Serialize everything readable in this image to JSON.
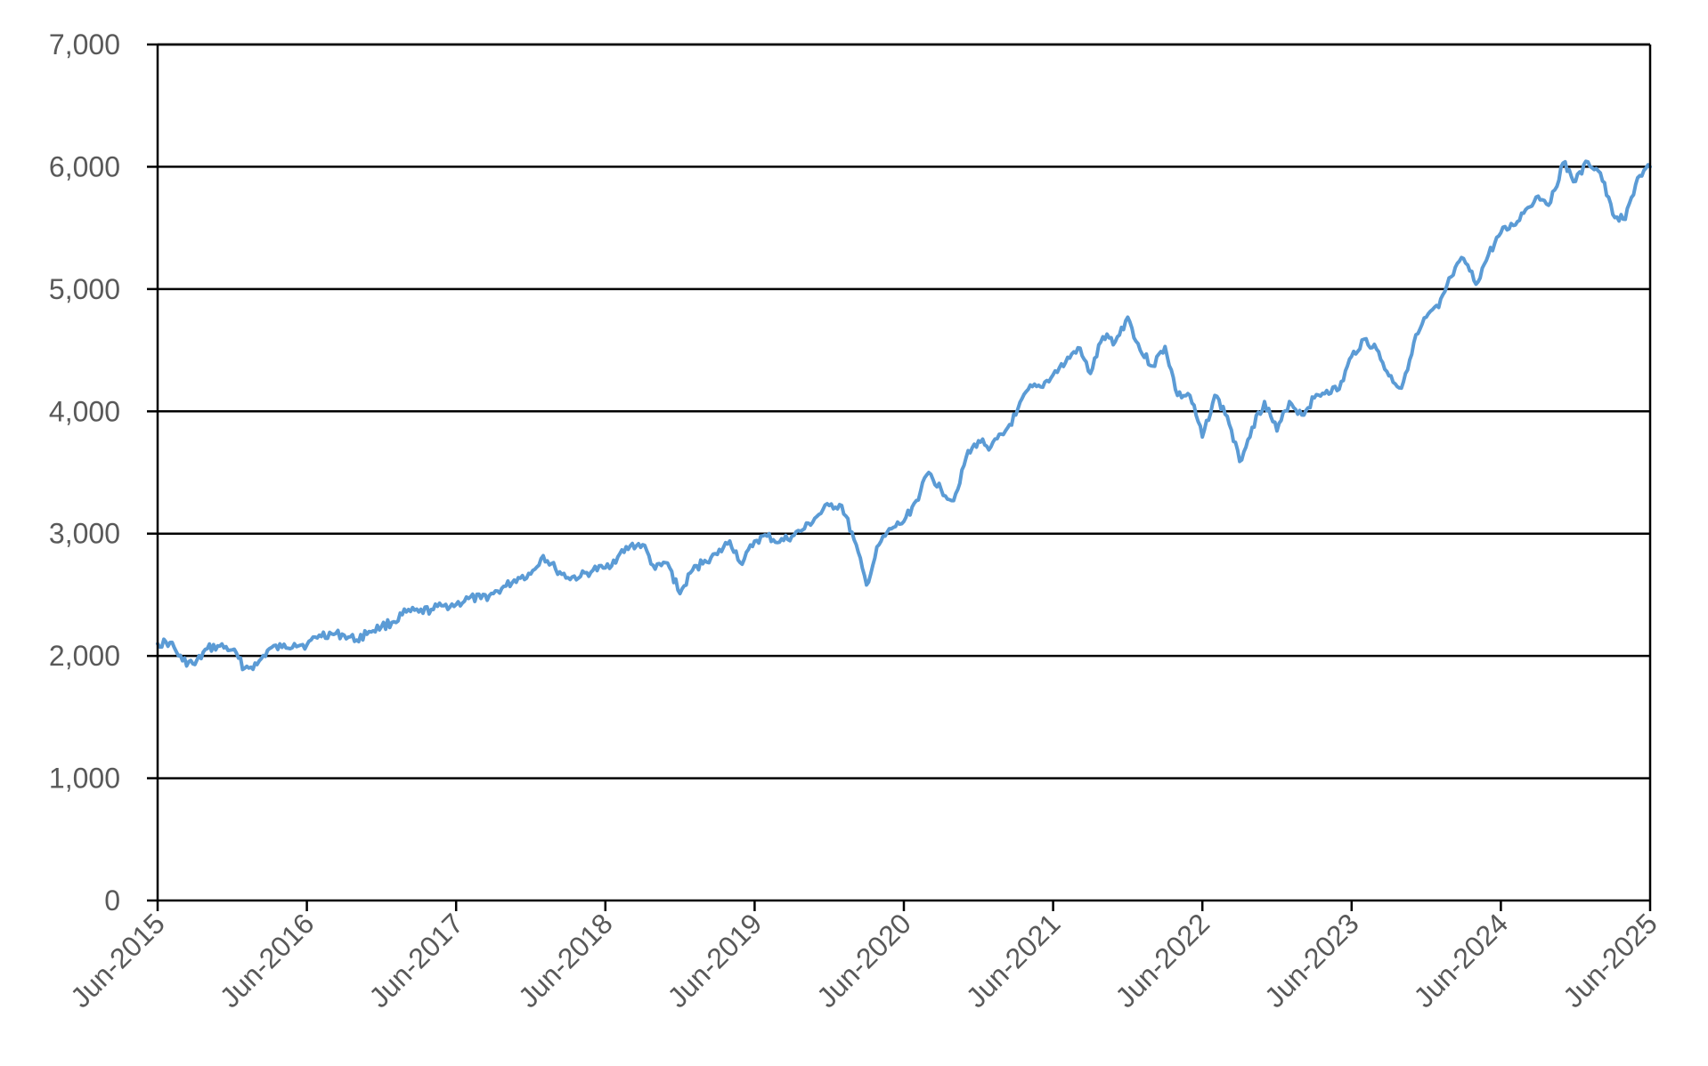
{
  "chart_data": {
    "type": "line",
    "title": "",
    "xlabel": "",
    "ylabel": "",
    "xlim": [
      "2015-06",
      "2025-06"
    ],
    "ylim": [
      0,
      7000
    ],
    "y_ticks": [
      0,
      1000,
      2000,
      3000,
      4000,
      5000,
      6000,
      7000
    ],
    "y_tick_labels": [
      "0",
      "1,000",
      "2,000",
      "3,000",
      "4,000",
      "5,000",
      "6,000",
      "7,000"
    ],
    "x_ticks": [
      "2015-06",
      "2016-06",
      "2017-06",
      "2018-06",
      "2019-06",
      "2020-06",
      "2021-06",
      "2022-06",
      "2023-06",
      "2024-06",
      "2025-06"
    ],
    "x_tick_labels": [
      "Jun-2015",
      "Jun-2016",
      "Jun-2017",
      "Jun-2018",
      "Jun-2019",
      "Jun-2020",
      "Jun-2021",
      "Jun-2022",
      "Jun-2023",
      "Jun-2024",
      "Jun-2025"
    ],
    "grid": "horizontal",
    "legend": "none",
    "colors": {
      "series": "#5B9BD5",
      "grid": "#000000",
      "axis": "#000000",
      "tick_text": "#595959"
    },
    "series": [
      {
        "x": [
          "2015-06",
          "2015-07",
          "2015-08",
          "2015-09",
          "2015-10",
          "2015-11",
          "2015-12",
          "2016-01",
          "2016-02",
          "2016-03",
          "2016-04",
          "2016-05",
          "2016-06",
          "2016-07",
          "2016-08",
          "2016-09",
          "2016-10",
          "2016-11",
          "2016-12",
          "2017-01",
          "2017-02",
          "2017-03",
          "2017-04",
          "2017-05",
          "2017-06",
          "2017-07",
          "2017-08",
          "2017-09",
          "2017-10",
          "2017-11",
          "2017-12",
          "2018-01",
          "2018-02",
          "2018-03",
          "2018-04",
          "2018-05",
          "2018-06",
          "2018-07",
          "2018-08",
          "2018-09",
          "2018-10",
          "2018-11",
          "2018-12",
          "2019-01",
          "2019-02",
          "2019-03",
          "2019-04",
          "2019-05",
          "2019-06",
          "2019-07",
          "2019-08",
          "2019-09",
          "2019-10",
          "2019-11",
          "2019-12",
          "2020-01",
          "2020-02",
          "2020-03",
          "2020-04",
          "2020-05",
          "2020-06",
          "2020-07",
          "2020-08",
          "2020-09",
          "2020-10",
          "2020-11",
          "2020-12",
          "2021-01",
          "2021-02",
          "2021-03",
          "2021-04",
          "2021-05",
          "2021-06",
          "2021-07",
          "2021-08",
          "2021-09",
          "2021-10",
          "2021-11",
          "2021-12",
          "2022-01",
          "2022-02",
          "2022-03",
          "2022-04",
          "2022-05",
          "2022-06",
          "2022-07",
          "2022-08",
          "2022-09",
          "2022-10",
          "2022-11",
          "2022-12",
          "2023-01",
          "2023-02",
          "2023-03",
          "2023-04",
          "2023-05",
          "2023-06",
          "2023-07",
          "2023-08",
          "2023-09",
          "2023-10",
          "2023-11",
          "2023-12",
          "2024-01",
          "2024-02",
          "2024-03",
          "2024-04",
          "2024-05",
          "2024-06",
          "2024-07",
          "2024-08",
          "2024-09",
          "2024-10",
          "2024-11",
          "2024-12",
          "2025-01",
          "2025-02",
          "2025-03",
          "2025-04",
          "2025-05",
          "2025-06"
        ],
        "y": [
          2100,
          2110,
          1960,
          1930,
          2060,
          2080,
          2050,
          1900,
          1930,
          2060,
          2070,
          2100,
          2090,
          2170,
          2180,
          2170,
          2130,
          2200,
          2240,
          2280,
          2360,
          2360,
          2380,
          2410,
          2420,
          2470,
          2470,
          2510,
          2570,
          2640,
          2670,
          2820,
          2710,
          2640,
          2650,
          2700,
          2720,
          2810,
          2900,
          2910,
          2710,
          2760,
          2510,
          2700,
          2780,
          2830,
          2940,
          2750,
          2940,
          2980,
          2930,
          2980,
          3040,
          3140,
          3230,
          3230,
          2950,
          2580,
          2910,
          3040,
          3100,
          3270,
          3500,
          3360,
          3270,
          3620,
          3760,
          3710,
          3810,
          3970,
          4180,
          4200,
          4300,
          4400,
          4520,
          4310,
          4610,
          4570,
          4770,
          4500,
          4370,
          4530,
          4130,
          4130,
          3790,
          4130,
          3960,
          3590,
          3870,
          4080,
          3840,
          4080,
          3970,
          4110,
          4170,
          4180,
          4450,
          4590,
          4510,
          4290,
          4190,
          4560,
          4770,
          4850,
          5100,
          5250,
          5040,
          5280,
          5460,
          5520,
          5650,
          5760,
          5710,
          6030,
          5880,
          6040,
          5950,
          5610,
          5570,
          5910,
          6000
        ]
      }
    ]
  }
}
